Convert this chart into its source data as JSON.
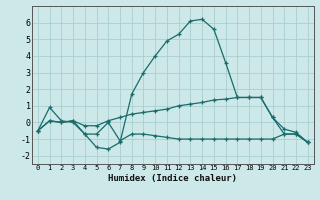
{
  "xlabel": "Humidex (Indice chaleur)",
  "background_color": "#cce8e8",
  "grid_color": "#aacfcf",
  "line_color": "#1a6b6b",
  "xlim": [
    -0.5,
    23.5
  ],
  "ylim": [
    -2.5,
    7.0
  ],
  "yticks": [
    -2,
    -1,
    0,
    1,
    2,
    3,
    4,
    5,
    6
  ],
  "xticks": [
    0,
    1,
    2,
    3,
    4,
    5,
    6,
    7,
    8,
    9,
    10,
    11,
    12,
    13,
    14,
    15,
    16,
    17,
    18,
    19,
    20,
    21,
    22,
    23
  ],
  "line1_x": [
    0,
    1,
    2,
    3,
    4,
    5,
    6,
    7,
    8,
    9,
    10,
    11,
    12,
    13,
    14,
    15,
    16,
    17,
    18,
    19,
    20,
    21,
    22,
    23
  ],
  "line1_y": [
    -0.5,
    0.9,
    0.1,
    0.0,
    -0.7,
    -1.5,
    -1.6,
    -1.2,
    1.7,
    3.0,
    4.0,
    4.9,
    5.3,
    6.1,
    6.2,
    5.6,
    3.6,
    1.5,
    1.5,
    1.5,
    0.3,
    -0.7,
    -0.7,
    -1.2
  ],
  "line2_x": [
    0,
    1,
    2,
    3,
    4,
    5,
    6,
    7,
    8,
    9,
    10,
    11,
    12,
    13,
    14,
    15,
    16,
    17,
    18,
    19,
    20,
    21,
    22,
    23
  ],
  "line2_y": [
    -0.5,
    0.1,
    0.0,
    0.1,
    -0.2,
    -0.2,
    0.1,
    0.3,
    0.5,
    0.6,
    0.7,
    0.8,
    1.0,
    1.1,
    1.2,
    1.35,
    1.4,
    1.5,
    1.5,
    1.5,
    0.3,
    -0.4,
    -0.6,
    -1.2
  ],
  "line3_x": [
    0,
    1,
    2,
    3,
    4,
    5,
    6,
    7,
    8,
    9,
    10,
    11,
    12,
    13,
    14,
    15,
    16,
    17,
    18,
    19,
    20,
    21,
    22,
    23
  ],
  "line3_y": [
    -0.5,
    0.1,
    0.0,
    0.1,
    -0.7,
    -0.7,
    0.0,
    -1.1,
    -0.7,
    -0.7,
    -0.8,
    -0.9,
    -1.0,
    -1.0,
    -1.0,
    -1.0,
    -1.0,
    -1.0,
    -1.0,
    -1.0,
    -1.0,
    -0.7,
    -0.7,
    -1.2
  ]
}
